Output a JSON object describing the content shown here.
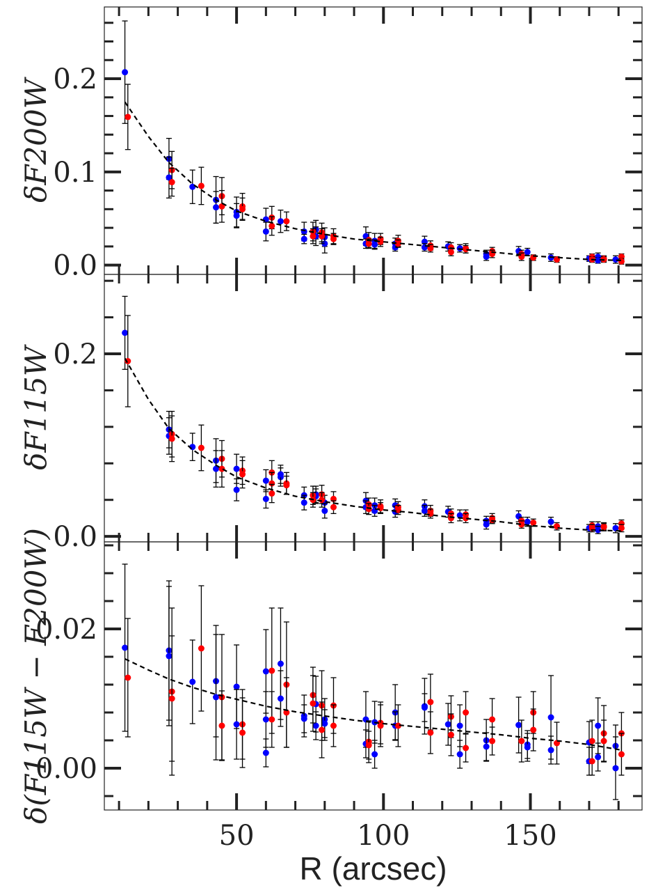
{
  "chart_data": [
    {
      "type": "scatter",
      "panel": "top",
      "ylabel": "δF200W",
      "xlim": [
        5,
        188
      ],
      "ylim": [
        -0.01,
        0.277
      ],
      "yticks": [
        0.0,
        0.1,
        0.2
      ],
      "ytick_labels": [
        "0.0",
        "0.1",
        "0.2"
      ],
      "series": [
        {
          "name": "blue",
          "color": "#0000ff",
          "x": [
            12,
            27,
            27,
            35,
            43,
            43,
            50,
            50,
            60,
            60,
            65,
            73,
            73,
            77,
            77,
            80,
            80,
            94,
            94,
            97,
            97,
            104,
            104,
            114,
            114,
            122,
            126,
            135,
            135,
            146,
            149,
            157,
            170,
            173,
            173,
            179
          ],
          "y": [
            0.207,
            0.114,
            0.094,
            0.084,
            0.07,
            0.062,
            0.057,
            0.053,
            0.049,
            0.036,
            0.047,
            0.036,
            0.028,
            0.038,
            0.031,
            0.03,
            0.023,
            0.031,
            0.023,
            0.026,
            0.022,
            0.023,
            0.019,
            0.025,
            0.019,
            0.02,
            0.018,
            0.012,
            0.009,
            0.015,
            0.014,
            0.008,
            0.007,
            0.009,
            0.005,
            0.006
          ],
          "err": [
            0.055,
            0.022,
            0.022,
            0.018,
            0.025,
            0.017,
            0.016,
            0.013,
            0.012,
            0.01,
            0.012,
            0.01,
            0.005,
            0.01,
            0.01,
            0.01,
            0.01,
            0.01,
            0.005,
            0.008,
            0.005,
            0.006,
            0.004,
            0.006,
            0.004,
            0.005,
            0.004,
            0.004,
            0.004,
            0.005,
            0.004,
            0.004,
            0.003,
            0.004,
            0.003,
            0.004
          ]
        },
        {
          "name": "red",
          "color": "#ff0000",
          "x": [
            13,
            28,
            28,
            38,
            45,
            45,
            52,
            52,
            62,
            62,
            67,
            76,
            76,
            79,
            79,
            83,
            83,
            95,
            95,
            99,
            99,
            105,
            105,
            116,
            116,
            123,
            123,
            128,
            128,
            137,
            137,
            147,
            147,
            151,
            159,
            171,
            171,
            175,
            175,
            181,
            181
          ],
          "y": [
            0.159,
            0.102,
            0.089,
            0.085,
            0.074,
            0.063,
            0.063,
            0.06,
            0.051,
            0.042,
            0.047,
            0.036,
            0.031,
            0.035,
            0.031,
            0.031,
            0.028,
            0.027,
            0.023,
            0.028,
            0.025,
            0.026,
            0.023,
            0.021,
            0.018,
            0.019,
            0.014,
            0.018,
            0.017,
            0.015,
            0.012,
            0.012,
            0.009,
            0.008,
            0.006,
            0.009,
            0.006,
            0.007,
            0.006,
            0.009,
            0.004
          ],
          "err": [
            0.035,
            0.02,
            0.015,
            0.02,
            0.02,
            0.017,
            0.014,
            0.012,
            0.012,
            0.01,
            0.01,
            0.01,
            0.008,
            0.01,
            0.008,
            0.008,
            0.006,
            0.008,
            0.005,
            0.006,
            0.005,
            0.006,
            0.004,
            0.005,
            0.004,
            0.005,
            0.004,
            0.005,
            0.004,
            0.004,
            0.004,
            0.004,
            0.004,
            0.003,
            0.003,
            0.003,
            0.003,
            0.003,
            0.003,
            0.003,
            0.003
          ]
        }
      ],
      "fit": {
        "x": [
          12,
          20,
          27,
          35,
          43,
          50,
          60,
          70,
          80,
          90,
          100,
          110,
          120,
          130,
          140,
          150,
          160,
          170,
          181
        ],
        "y": [
          0.175,
          0.138,
          0.11,
          0.087,
          0.07,
          0.058,
          0.047,
          0.039,
          0.033,
          0.028,
          0.025,
          0.022,
          0.019,
          0.016,
          0.013,
          0.01,
          0.008,
          0.006,
          0.005
        ]
      }
    },
    {
      "type": "scatter",
      "panel": "middle",
      "ylabel": "δF115W",
      "xlim": [
        5,
        188
      ],
      "ylim": [
        -0.006,
        0.287
      ],
      "yticks": [
        0.0,
        0.2
      ],
      "ytick_labels": [
        "0.0",
        "0.2"
      ],
      "series": [
        {
          "name": "blue",
          "color": "#0000ff",
          "x": [
            12,
            27,
            27,
            35,
            43,
            43,
            50,
            50,
            60,
            60,
            65,
            65,
            73,
            73,
            77,
            77,
            80,
            80,
            94,
            94,
            97,
            97,
            104,
            104,
            114,
            114,
            122,
            126,
            135,
            135,
            146,
            149,
            157,
            170,
            173,
            173,
            179
          ],
          "y": [
            0.223,
            0.117,
            0.11,
            0.098,
            0.083,
            0.074,
            0.074,
            0.051,
            0.061,
            0.041,
            0.065,
            0.068,
            0.045,
            0.037,
            0.046,
            0.044,
            0.037,
            0.028,
            0.039,
            0.032,
            0.034,
            0.028,
            0.034,
            0.027,
            0.033,
            0.028,
            0.027,
            0.023,
            0.017,
            0.013,
            0.022,
            0.016,
            0.016,
            0.009,
            0.011,
            0.007,
            0.009
          ],
          "err": [
            0.04,
            0.02,
            0.02,
            0.015,
            0.024,
            0.02,
            0.016,
            0.012,
            0.012,
            0.01,
            0.01,
            0.01,
            0.009,
            0.008,
            0.009,
            0.008,
            0.008,
            0.008,
            0.009,
            0.007,
            0.008,
            0.006,
            0.007,
            0.006,
            0.007,
            0.006,
            0.006,
            0.006,
            0.005,
            0.005,
            0.006,
            0.005,
            0.005,
            0.004,
            0.005,
            0.004,
            0.005
          ]
        },
        {
          "name": "red",
          "color": "#ff0000",
          "x": [
            13,
            28,
            28,
            38,
            45,
            45,
            52,
            52,
            62,
            62,
            62,
            67,
            67,
            76,
            76,
            79,
            79,
            83,
            83,
            95,
            95,
            99,
            99,
            105,
            105,
            116,
            116,
            123,
            123,
            128,
            128,
            137,
            137,
            147,
            147,
            151,
            159,
            171,
            171,
            175,
            175,
            181,
            181
          ],
          "y": [
            0.192,
            0.112,
            0.107,
            0.097,
            0.085,
            0.074,
            0.072,
            0.068,
            0.07,
            0.058,
            0.047,
            0.058,
            0.056,
            0.045,
            0.04,
            0.046,
            0.04,
            0.041,
            0.032,
            0.035,
            0.03,
            0.033,
            0.031,
            0.032,
            0.029,
            0.028,
            0.025,
            0.025,
            0.02,
            0.024,
            0.02,
            0.02,
            0.018,
            0.017,
            0.013,
            0.015,
            0.011,
            0.012,
            0.009,
            0.011,
            0.01,
            0.014,
            0.009
          ],
          "err": [
            0.05,
            0.025,
            0.025,
            0.025,
            0.02,
            0.02,
            0.015,
            0.015,
            0.013,
            0.012,
            0.01,
            0.012,
            0.01,
            0.01,
            0.008,
            0.01,
            0.008,
            0.008,
            0.007,
            0.007,
            0.006,
            0.007,
            0.006,
            0.006,
            0.005,
            0.006,
            0.005,
            0.005,
            0.005,
            0.005,
            0.005,
            0.005,
            0.004,
            0.004,
            0.004,
            0.004,
            0.004,
            0.004,
            0.004,
            0.004,
            0.004,
            0.004,
            0.004
          ]
        }
      ],
      "fit": {
        "x": [
          12,
          20,
          27,
          35,
          43,
          50,
          60,
          70,
          80,
          90,
          100,
          110,
          120,
          130,
          140,
          150,
          160,
          170,
          181
        ],
        "y": [
          0.195,
          0.15,
          0.118,
          0.095,
          0.078,
          0.065,
          0.053,
          0.044,
          0.038,
          0.033,
          0.029,
          0.026,
          0.022,
          0.019,
          0.016,
          0.012,
          0.009,
          0.007,
          0.006
        ]
      }
    },
    {
      "type": "scatter",
      "panel": "bottom",
      "ylabel": "δ(F115W − F200W)",
      "xlabel": "R (arcsec)",
      "xlim": [
        5,
        188
      ],
      "xticks": [
        50,
        100,
        150
      ],
      "xtick_labels": [
        "50",
        "100",
        "150"
      ],
      "ylim": [
        -0.006,
        0.0325
      ],
      "yticks": [
        0.0,
        0.02
      ],
      "ytick_labels": [
        "0.00",
        "0.02"
      ],
      "series": [
        {
          "name": "blue",
          "color": "#0000ff",
          "x": [
            12,
            27,
            27,
            35,
            43,
            43,
            50,
            50,
            60,
            60,
            60,
            65,
            65,
            73,
            73,
            77,
            77,
            80,
            80,
            94,
            94,
            97,
            97,
            104,
            104,
            114,
            114,
            122,
            126,
            126,
            135,
            135,
            146,
            149,
            149,
            157,
            157,
            170,
            170,
            173,
            173,
            179,
            179
          ],
          "y": [
            0.0173,
            0.0169,
            0.0161,
            0.0124,
            0.0125,
            0.0102,
            0.0117,
            0.0063,
            0.0139,
            0.007,
            0.0022,
            0.015,
            0.01,
            0.0075,
            0.0071,
            0.0092,
            0.0061,
            0.007,
            0.0064,
            0.007,
            0.0035,
            0.0066,
            0.002,
            0.008,
            0.0061,
            0.0089,
            0.0087,
            0.0063,
            0.0061,
            0.002,
            0.004,
            0.0031,
            0.0062,
            0.0034,
            0.003,
            0.0073,
            0.0026,
            0.0037,
            0.001,
            0.0061,
            0.0016,
            0.0032,
            0.0
          ],
          "err": [
            0.012,
            0.01,
            0.01,
            0.006,
            0.008,
            0.009,
            0.006,
            0.005,
            0.006,
            0.004,
            0.002,
            0.008,
            0.004,
            0.003,
            0.002,
            0.004,
            0.002,
            0.003,
            0.002,
            0.004,
            0.002,
            0.003,
            0.002,
            0.004,
            0.002,
            0.004,
            0.002,
            0.003,
            0.003,
            0.002,
            0.003,
            0.002,
            0.004,
            0.002,
            0.002,
            0.006,
            0.002,
            0.003,
            0.002,
            0.004,
            0.002,
            0.003,
            0.0045
          ]
        },
        {
          "name": "red",
          "color": "#ff0000",
          "x": [
            13,
            28,
            28,
            38,
            45,
            45,
            52,
            52,
            62,
            62,
            67,
            67,
            76,
            76,
            79,
            79,
            83,
            83,
            95,
            95,
            99,
            99,
            105,
            116,
            116,
            123,
            123,
            128,
            128,
            137,
            137,
            147,
            151,
            151,
            159,
            171,
            171,
            175,
            175,
            181,
            181
          ],
          "y": [
            0.013,
            0.011,
            0.01,
            0.0172,
            0.0102,
            0.0061,
            0.0063,
            0.0051,
            0.014,
            0.007,
            0.012,
            0.008,
            0.0105,
            0.0093,
            0.009,
            0.0055,
            0.009,
            0.0061,
            0.0038,
            0.0033,
            0.0065,
            0.0061,
            0.0061,
            0.0095,
            0.0051,
            0.0074,
            0.0048,
            0.008,
            0.0029,
            0.007,
            0.0039,
            0.0039,
            0.008,
            0.0055,
            0.0036,
            0.0039,
            0.001,
            0.005,
            0.0039,
            0.005,
            0.002
          ],
          "err": [
            0.0085,
            0.012,
            0.009,
            0.009,
            0.009,
            0.005,
            0.005,
            0.005,
            0.009,
            0.004,
            0.009,
            0.005,
            0.004,
            0.004,
            0.005,
            0.004,
            0.004,
            0.003,
            0.003,
            0.002,
            0.003,
            0.003,
            0.003,
            0.004,
            0.003,
            0.003,
            0.003,
            0.003,
            0.002,
            0.003,
            0.002,
            0.003,
            0.003,
            0.003,
            0.003,
            0.003,
            0.002,
            0.004,
            0.003,
            0.003,
            0.003
          ]
        }
      ],
      "fit": {
        "x": [
          12,
          20,
          27,
          35,
          43,
          50,
          60,
          70,
          80,
          90,
          100,
          110,
          120,
          130,
          140,
          150,
          160,
          170,
          181
        ],
        "y": [
          0.0157,
          0.0141,
          0.0128,
          0.0116,
          0.0106,
          0.0099,
          0.0089,
          0.0081,
          0.0075,
          0.0069,
          0.0064,
          0.006,
          0.0056,
          0.0052,
          0.0048,
          0.0043,
          0.0039,
          0.0034,
          0.0026
        ]
      }
    }
  ]
}
